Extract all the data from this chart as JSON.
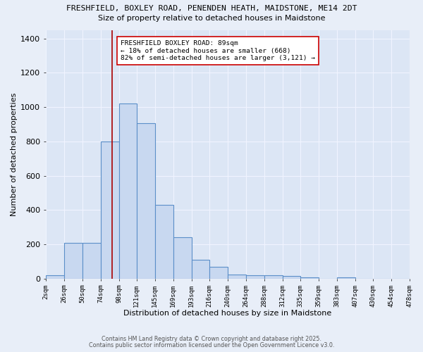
{
  "title_line1": "FRESHFIELD, BOXLEY ROAD, PENENDEN HEATH, MAIDSTONE, ME14 2DT",
  "title_line2": "Size of property relative to detached houses in Maidstone",
  "xlabel": "Distribution of detached houses by size in Maidstone",
  "ylabel": "Number of detached properties",
  "bin_edges": [
    2,
    26,
    50,
    74,
    98,
    121,
    145,
    169,
    193,
    216,
    240,
    264,
    288,
    312,
    335,
    359,
    383,
    407,
    430,
    454,
    478
  ],
  "bar_heights": [
    20,
    210,
    210,
    800,
    1020,
    905,
    430,
    240,
    110,
    70,
    25,
    20,
    20,
    15,
    10,
    0,
    10,
    0,
    0,
    0
  ],
  "bar_facecolor": "#c8d8f0",
  "bar_edgecolor": "#5b8fc9",
  "bar_linewidth": 0.8,
  "red_line_x": 89,
  "red_line_color": "#aa0000",
  "annotation_text": "FRESHFIELD BOXLEY ROAD: 89sqm\n← 18% of detached houses are smaller (668)\n82% of semi-detached houses are larger (3,121) →",
  "annotation_box_edgecolor": "#cc0000",
  "annotation_box_facecolor": "#ffffff",
  "annotation_fontsize": 6.8,
  "ylim": [
    0,
    1450
  ],
  "yticks": [
    0,
    200,
    400,
    600,
    800,
    1000,
    1200,
    1400
  ],
  "background_color": "#e8eef8",
  "plot_bg_color": "#dce6f5",
  "grid_color": "#f0f4ff",
  "footnote1": "Contains HM Land Registry data © Crown copyright and database right 2025.",
  "footnote2": "Contains public sector information licensed under the Open Government Licence v3.0.",
  "tick_labels": [
    "2sqm",
    "26sqm",
    "50sqm",
    "74sqm",
    "98sqm",
    "121sqm",
    "145sqm",
    "169sqm",
    "193sqm",
    "216sqm",
    "240sqm",
    "264sqm",
    "288sqm",
    "312sqm",
    "335sqm",
    "359sqm",
    "383sqm",
    "407sqm",
    "430sqm",
    "454sqm",
    "478sqm"
  ]
}
